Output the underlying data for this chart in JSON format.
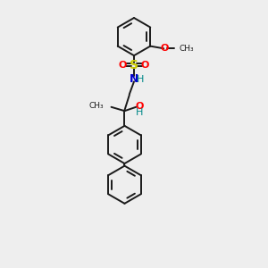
{
  "background_color": "#eeeeee",
  "bond_color": "#1a1a1a",
  "atom_colors": {
    "S": "#cccc00",
    "O": "#ff0000",
    "N": "#0000cc",
    "H": "#008888",
    "C": "#1a1a1a"
  },
  "xlim": [
    -3.5,
    6.5
  ],
  "ylim": [
    -11.5,
    5.5
  ],
  "r": 1.2,
  "lw": 1.4
}
